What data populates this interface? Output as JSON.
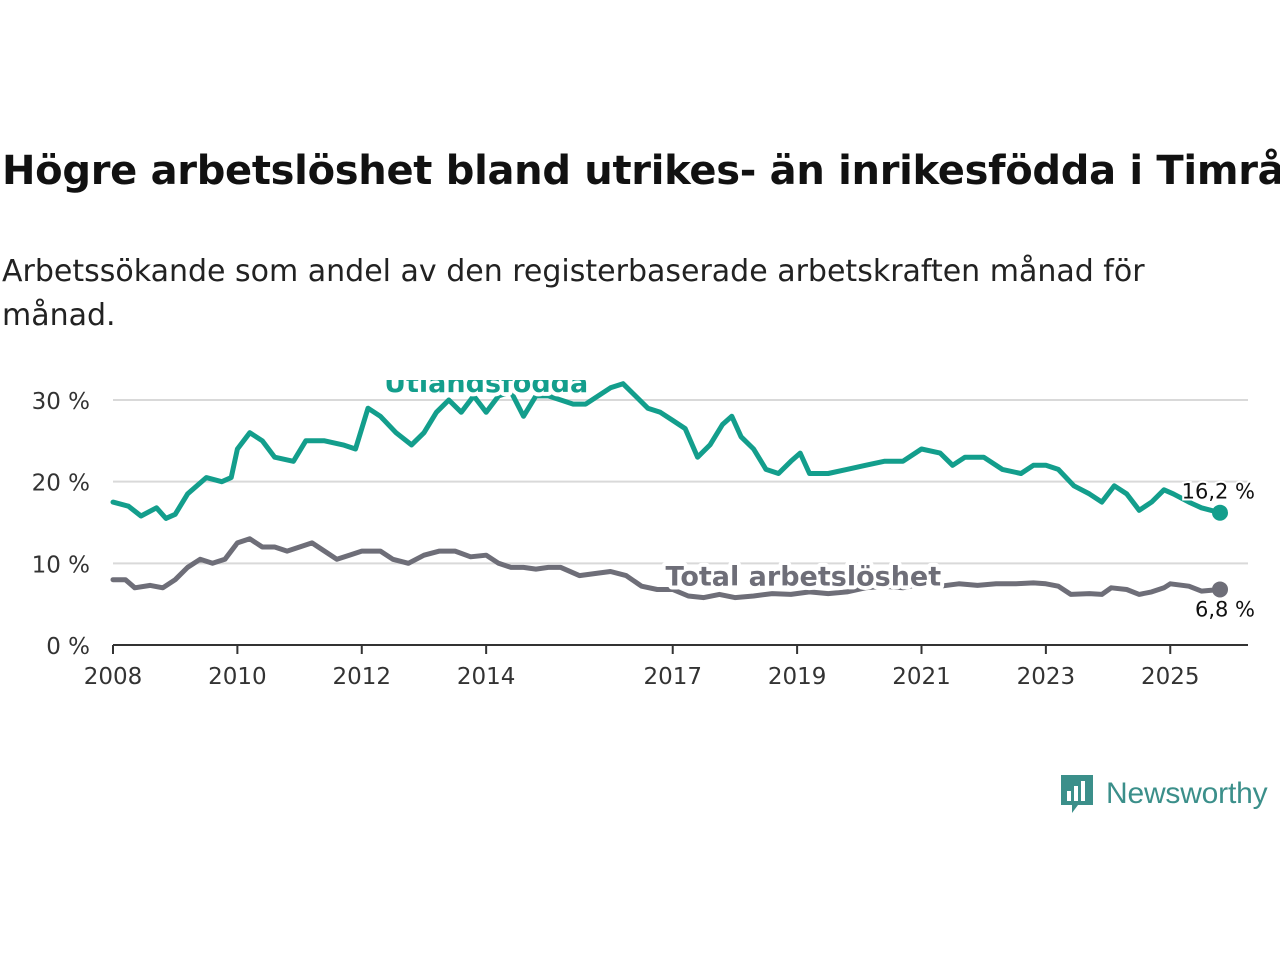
{
  "title": "Högre arbetslöshet bland utrikes- än inrikesfödda i Timrå",
  "subtitle": "Arbetssökande som andel av den registerbaserade arbetskraften månad för månad.",
  "brand": {
    "name": "Newsworthy",
    "color": "#3b8f8a",
    "icon": "newsworthy-logo-icon"
  },
  "chart_data": {
    "type": "line",
    "title": "Högre arbetslöshet bland utrikes- än inrikesfödda i Timrå",
    "xlabel": "",
    "ylabel": "",
    "xlim": [
      2008,
      2026.25
    ],
    "ylim": [
      0,
      30
    ],
    "y_ticks": [
      0,
      10,
      20,
      30
    ],
    "y_tick_labels": [
      "0 %",
      "10 %",
      "20 %",
      "30 %"
    ],
    "x_ticks": [
      2008,
      2010,
      2012,
      2014,
      2017,
      2019,
      2021,
      2023,
      2025
    ],
    "x_tick_labels": [
      "2008",
      "2010",
      "2012",
      "2014",
      "2017",
      "2019",
      "2021",
      "2023",
      "2025"
    ],
    "grid": true,
    "series": [
      {
        "name": "Utlandsfödda",
        "color": "#139e8c",
        "end_label": "16,2 %",
        "points": [
          [
            2008.0,
            17.5
          ],
          [
            2008.25,
            17.0
          ],
          [
            2008.45,
            15.8
          ],
          [
            2008.7,
            16.8
          ],
          [
            2008.85,
            15.5
          ],
          [
            2009.0,
            16.0
          ],
          [
            2009.2,
            18.5
          ],
          [
            2009.5,
            20.5
          ],
          [
            2009.75,
            20.0
          ],
          [
            2009.9,
            20.5
          ],
          [
            2010.0,
            24.0
          ],
          [
            2010.2,
            26.0
          ],
          [
            2010.4,
            25.0
          ],
          [
            2010.6,
            23.0
          ],
          [
            2010.9,
            22.5
          ],
          [
            2011.1,
            25.0
          ],
          [
            2011.4,
            25.0
          ],
          [
            2011.7,
            24.5
          ],
          [
            2011.9,
            24.0
          ],
          [
            2012.1,
            29.0
          ],
          [
            2012.3,
            28.0
          ],
          [
            2012.55,
            26.0
          ],
          [
            2012.8,
            24.5
          ],
          [
            2013.0,
            26.0
          ],
          [
            2013.2,
            28.5
          ],
          [
            2013.4,
            30.0
          ],
          [
            2013.6,
            28.5
          ],
          [
            2013.8,
            30.5
          ],
          [
            2014.0,
            28.5
          ],
          [
            2014.2,
            30.5
          ],
          [
            2014.4,
            31.0
          ],
          [
            2014.6,
            28.0
          ],
          [
            2014.8,
            30.5
          ],
          [
            2015.0,
            30.5
          ],
          [
            2015.2,
            30.0
          ],
          [
            2015.4,
            29.5
          ],
          [
            2015.6,
            29.5
          ],
          [
            2015.8,
            30.5
          ],
          [
            2016.0,
            31.5
          ],
          [
            2016.2,
            32.0
          ],
          [
            2016.4,
            30.5
          ],
          [
            2016.6,
            29.0
          ],
          [
            2016.8,
            28.5
          ],
          [
            2017.0,
            27.5
          ],
          [
            2017.2,
            26.5
          ],
          [
            2017.4,
            23.0
          ],
          [
            2017.6,
            24.5
          ],
          [
            2017.8,
            27.0
          ],
          [
            2017.95,
            28.0
          ],
          [
            2018.1,
            25.5
          ],
          [
            2018.3,
            24.0
          ],
          [
            2018.5,
            21.5
          ],
          [
            2018.7,
            21.0
          ],
          [
            2018.9,
            22.5
          ],
          [
            2019.05,
            23.5
          ],
          [
            2019.2,
            21.0
          ],
          [
            2019.5,
            21.0
          ],
          [
            2019.8,
            21.5
          ],
          [
            2020.1,
            22.0
          ],
          [
            2020.4,
            22.5
          ],
          [
            2020.7,
            22.5
          ],
          [
            2021.0,
            24.0
          ],
          [
            2021.3,
            23.5
          ],
          [
            2021.5,
            22.0
          ],
          [
            2021.7,
            23.0
          ],
          [
            2022.0,
            23.0
          ],
          [
            2022.3,
            21.5
          ],
          [
            2022.6,
            21.0
          ],
          [
            2022.8,
            22.0
          ],
          [
            2023.0,
            22.0
          ],
          [
            2023.2,
            21.5
          ],
          [
            2023.45,
            19.5
          ],
          [
            2023.7,
            18.5
          ],
          [
            2023.9,
            17.5
          ],
          [
            2024.1,
            19.5
          ],
          [
            2024.3,
            18.5
          ],
          [
            2024.5,
            16.5
          ],
          [
            2024.7,
            17.5
          ],
          [
            2024.9,
            19.0
          ],
          [
            2025.05,
            18.5
          ],
          [
            2025.3,
            17.5
          ],
          [
            2025.5,
            16.8
          ],
          [
            2025.8,
            16.2
          ]
        ]
      },
      {
        "name": "Total arbetslöshet",
        "color": "#6e6e78",
        "end_label": "6,8 %",
        "points": [
          [
            2008.0,
            8.0
          ],
          [
            2008.2,
            8.0
          ],
          [
            2008.35,
            7.0
          ],
          [
            2008.6,
            7.3
          ],
          [
            2008.8,
            7.0
          ],
          [
            2009.0,
            8.0
          ],
          [
            2009.2,
            9.5
          ],
          [
            2009.4,
            10.5
          ],
          [
            2009.6,
            10.0
          ],
          [
            2009.8,
            10.5
          ],
          [
            2010.0,
            12.5
          ],
          [
            2010.2,
            13.0
          ],
          [
            2010.4,
            12.0
          ],
          [
            2010.6,
            12.0
          ],
          [
            2010.8,
            11.5
          ],
          [
            2011.0,
            12.0
          ],
          [
            2011.2,
            12.5
          ],
          [
            2011.4,
            11.5
          ],
          [
            2011.6,
            10.5
          ],
          [
            2011.8,
            11.0
          ],
          [
            2012.0,
            11.5
          ],
          [
            2012.3,
            11.5
          ],
          [
            2012.5,
            10.5
          ],
          [
            2012.75,
            10.0
          ],
          [
            2013.0,
            11.0
          ],
          [
            2013.25,
            11.5
          ],
          [
            2013.5,
            11.5
          ],
          [
            2013.75,
            10.8
          ],
          [
            2014.0,
            11.0
          ],
          [
            2014.2,
            10.0
          ],
          [
            2014.4,
            9.5
          ],
          [
            2014.6,
            9.5
          ],
          [
            2014.8,
            9.3
          ],
          [
            2015.0,
            9.5
          ],
          [
            2015.2,
            9.5
          ],
          [
            2015.5,
            8.5
          ],
          [
            2015.8,
            8.8
          ],
          [
            2016.0,
            9.0
          ],
          [
            2016.25,
            8.5
          ],
          [
            2016.5,
            7.2
          ],
          [
            2016.75,
            6.8
          ],
          [
            2017.0,
            6.8
          ],
          [
            2017.25,
            6.0
          ],
          [
            2017.5,
            5.8
          ],
          [
            2017.75,
            6.2
          ],
          [
            2018.0,
            5.8
          ],
          [
            2018.3,
            6.0
          ],
          [
            2018.6,
            6.3
          ],
          [
            2018.9,
            6.2
          ],
          [
            2019.2,
            6.5
          ],
          [
            2019.5,
            6.3
          ],
          [
            2019.8,
            6.5
          ],
          [
            2020.1,
            7.0
          ],
          [
            2020.4,
            7.2
          ],
          [
            2020.7,
            7.0
          ],
          [
            2021.0,
            7.5
          ],
          [
            2021.3,
            7.2
          ],
          [
            2021.6,
            7.5
          ],
          [
            2021.9,
            7.3
          ],
          [
            2022.2,
            7.5
          ],
          [
            2022.5,
            7.5
          ],
          [
            2022.8,
            7.6
          ],
          [
            2023.0,
            7.5
          ],
          [
            2023.2,
            7.2
          ],
          [
            2023.4,
            6.2
          ],
          [
            2023.7,
            6.3
          ],
          [
            2023.9,
            6.2
          ],
          [
            2024.05,
            7.0
          ],
          [
            2024.3,
            6.8
          ],
          [
            2024.5,
            6.2
          ],
          [
            2024.7,
            6.5
          ],
          [
            2024.9,
            7.0
          ],
          [
            2025.0,
            7.5
          ],
          [
            2025.3,
            7.2
          ],
          [
            2025.5,
            6.6
          ],
          [
            2025.8,
            6.8
          ]
        ]
      }
    ]
  }
}
